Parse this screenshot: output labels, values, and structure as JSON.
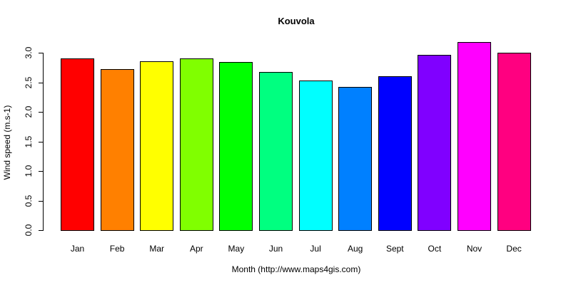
{
  "chart_data": {
    "type": "bar",
    "title": "Kouvola",
    "xlabel": "Month (http://www.maps4gis.com)",
    "ylabel": "Wind speed (m.s-1)",
    "categories": [
      "Jan",
      "Feb",
      "Mar",
      "Apr",
      "May",
      "Jun",
      "Jul",
      "Aug",
      "Sept",
      "Oct",
      "Nov",
      "Dec"
    ],
    "values": [
      2.9,
      2.72,
      2.86,
      2.9,
      2.84,
      2.67,
      2.53,
      2.42,
      2.6,
      2.96,
      3.18,
      3.0
    ],
    "colors": [
      "#FF0000",
      "#FF8000",
      "#FFFF00",
      "#80FF00",
      "#00FF00",
      "#00FF80",
      "#00FFFF",
      "#0080FF",
      "#0000FF",
      "#8000FF",
      "#FF00FF",
      "#FF0080"
    ],
    "yticks": [
      "0.0",
      "0.5",
      "1.0",
      "1.5",
      "2.0",
      "2.5",
      "3.0"
    ],
    "ylim": [
      0,
      3.0
    ],
    "grid": false,
    "legend": "none"
  }
}
